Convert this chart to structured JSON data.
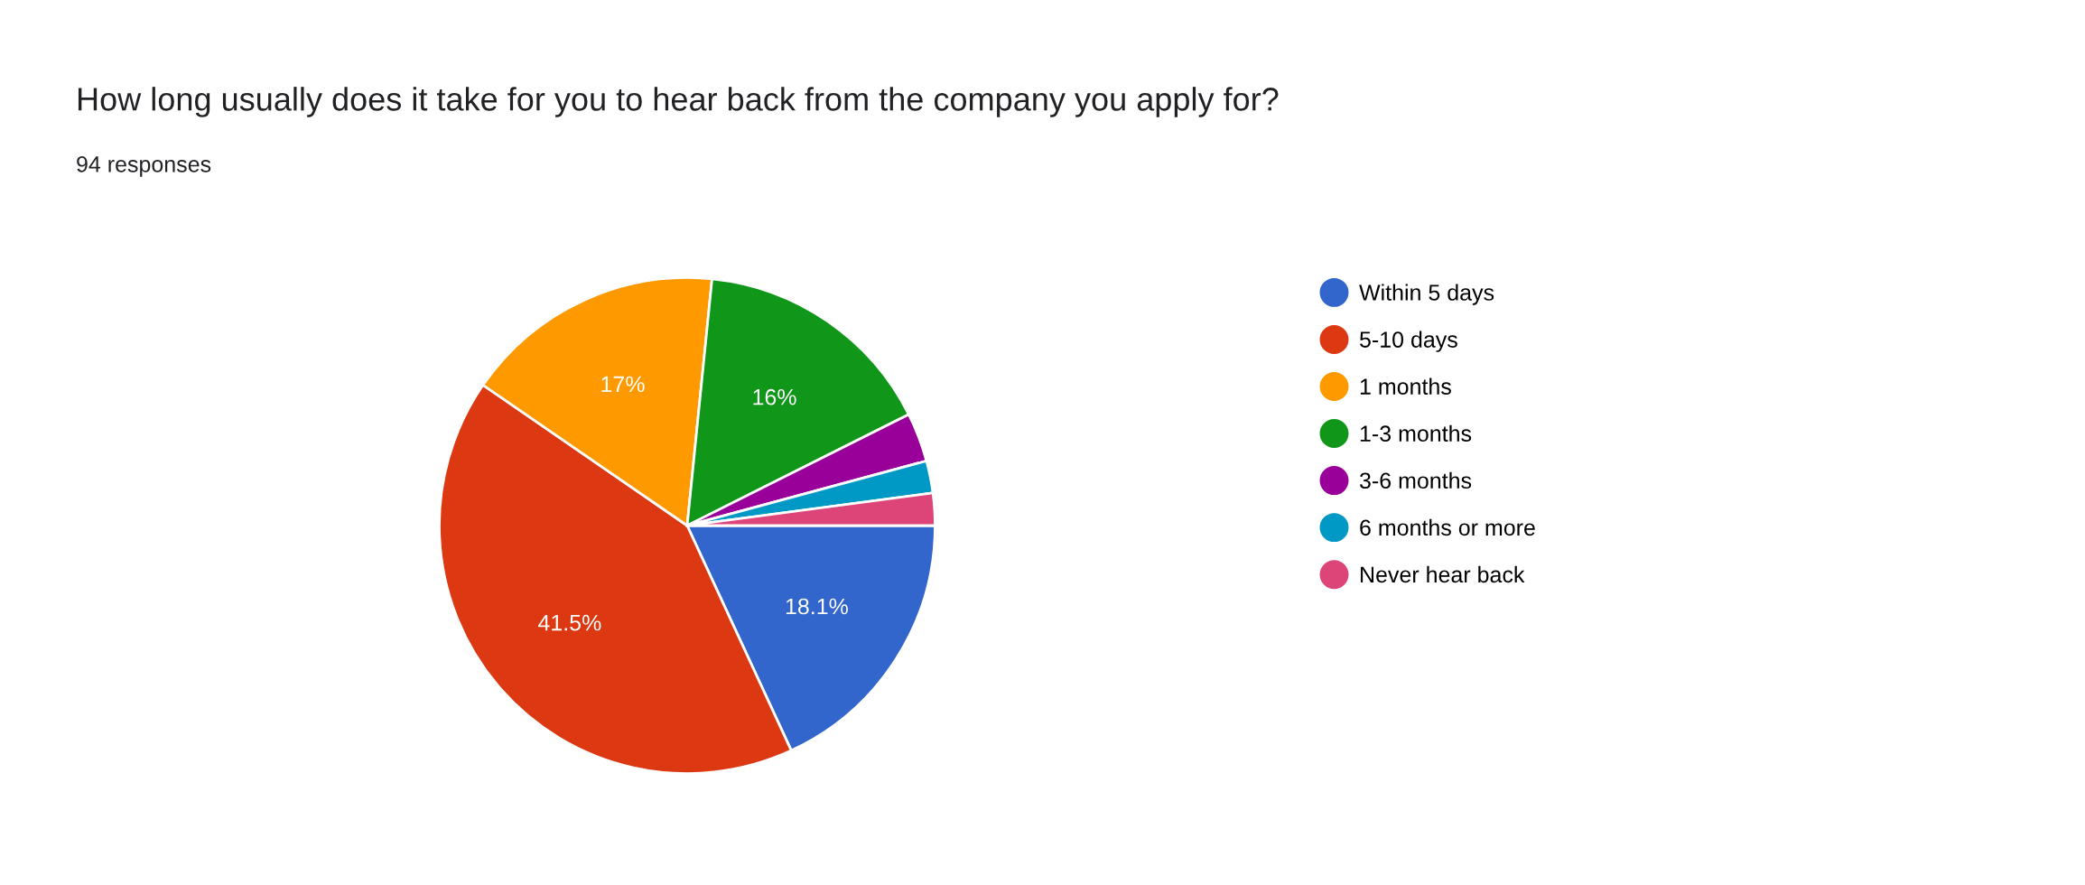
{
  "chart_data": {
    "type": "pie",
    "title": "How long usually does it take for you to hear back from the company you apply for?",
    "subtitle": "94 responses",
    "categories": [
      "Within 5 days",
      "5-10 days",
      "1 months",
      "1-3 months",
      "3-6 months",
      "6 months or more",
      "Never hear back"
    ],
    "values": [
      18.1,
      41.5,
      17,
      16,
      3.2,
      2.1,
      2.1
    ],
    "value_labels": [
      "18.1%",
      "41.5%",
      "17%",
      "16%",
      null,
      null,
      null
    ],
    "colors": [
      "#3366cc",
      "#dc3912",
      "#ff9900",
      "#109618",
      "#990099",
      "#0099c6",
      "#dd4477"
    ],
    "legend": "right"
  }
}
